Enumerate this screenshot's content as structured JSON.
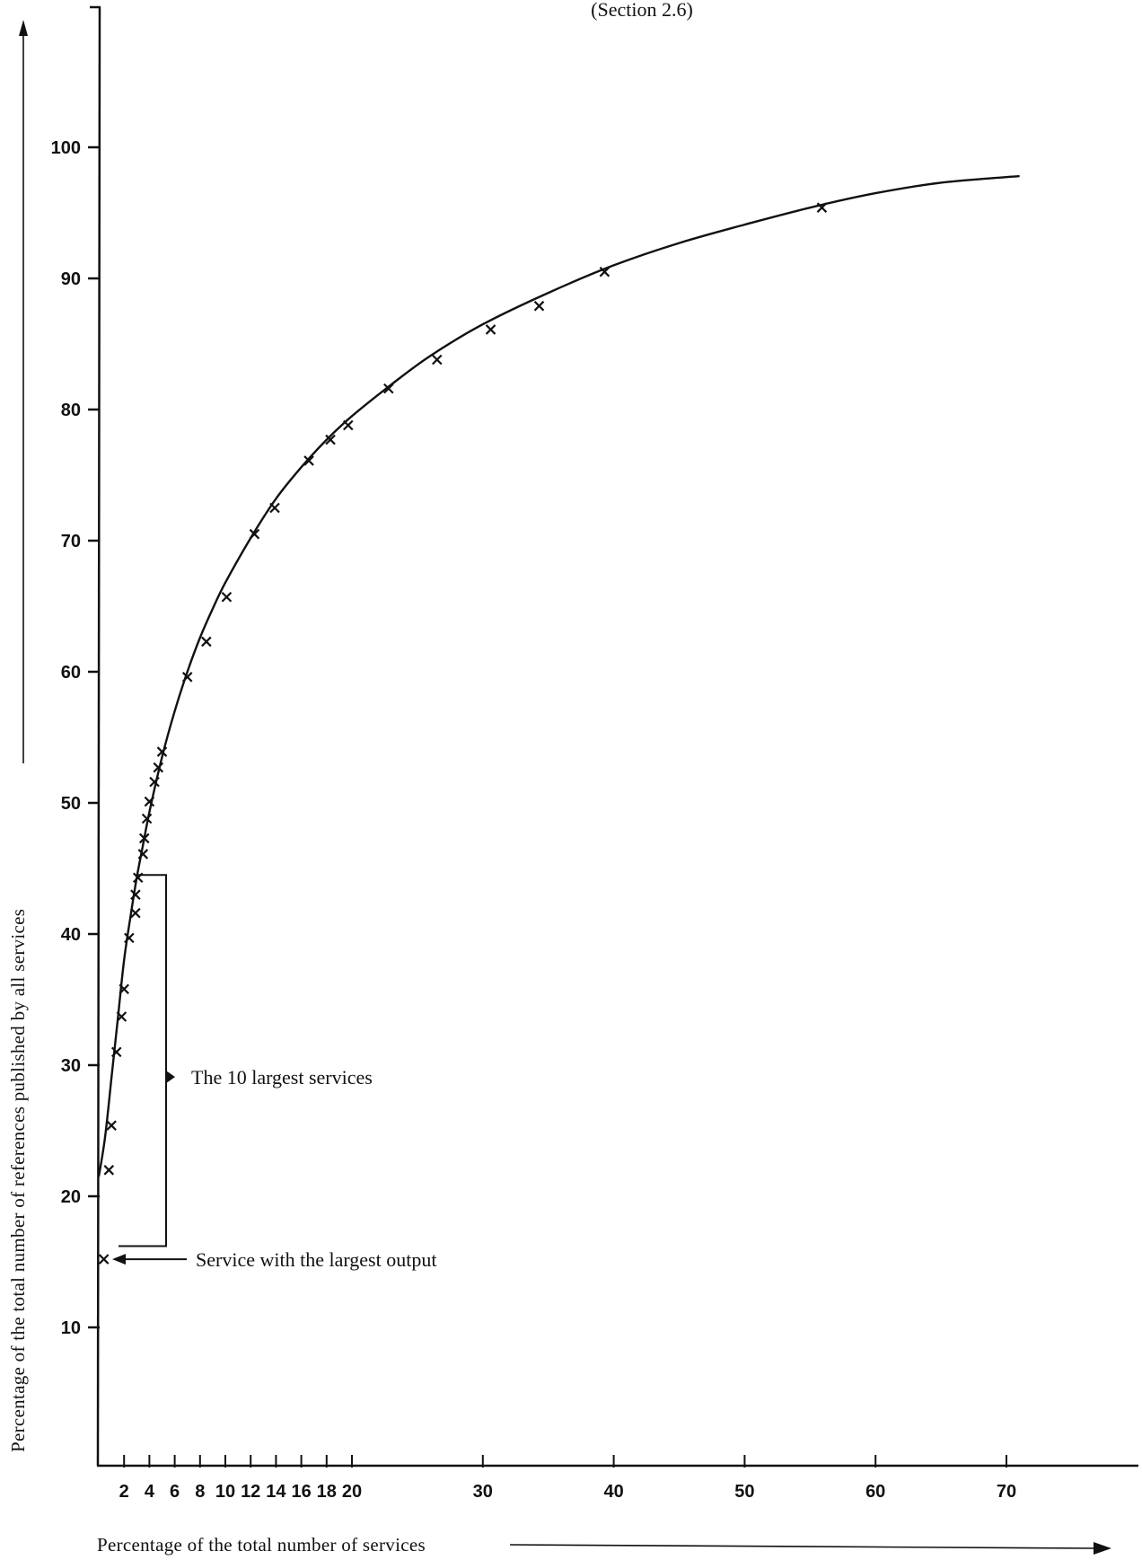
{
  "chart_data": {
    "type": "scatter",
    "subtitle": "(Section 2.6)",
    "xlabel": "Percentage of the total number of services",
    "ylabel": "Percentage of the total number of references published by all services",
    "xlim": [
      0,
      71
    ],
    "ylim": [
      0,
      100
    ],
    "x_ticks": [
      2,
      4,
      6,
      8,
      10,
      12,
      14,
      16,
      18,
      20,
      30,
      40,
      50,
      60,
      70
    ],
    "y_ticks": [
      10,
      20,
      30,
      40,
      50,
      60,
      70,
      80,
      90,
      100
    ],
    "grid": false,
    "legend": "none",
    "series": [
      {
        "marker": "x",
        "points": [
          {
            "x": 0.4,
            "y": 15.2
          },
          {
            "x": 0.8,
            "y": 22.0
          },
          {
            "x": 1.0,
            "y": 25.4
          },
          {
            "x": 1.4,
            "y": 31.0
          },
          {
            "x": 1.8,
            "y": 33.7
          },
          {
            "x": 2.0,
            "y": 35.8
          },
          {
            "x": 2.4,
            "y": 39.7
          },
          {
            "x": 2.9,
            "y": 41.6
          },
          {
            "x": 2.9,
            "y": 43.0
          },
          {
            "x": 3.1,
            "y": 44.3
          },
          {
            "x": 3.5,
            "y": 46.1
          },
          {
            "x": 3.6,
            "y": 47.3
          },
          {
            "x": 3.8,
            "y": 48.8
          },
          {
            "x": 4.0,
            "y": 50.1
          },
          {
            "x": 4.4,
            "y": 51.6
          },
          {
            "x": 4.7,
            "y": 52.7
          },
          {
            "x": 5.0,
            "y": 53.9
          },
          {
            "x": 7.0,
            "y": 59.6
          },
          {
            "x": 8.5,
            "y": 62.3
          },
          {
            "x": 10.1,
            "y": 65.7
          },
          {
            "x": 12.3,
            "y": 70.5
          },
          {
            "x": 13.9,
            "y": 72.5
          },
          {
            "x": 16.6,
            "y": 76.1
          },
          {
            "x": 18.3,
            "y": 77.7
          },
          {
            "x": 19.7,
            "y": 78.8
          },
          {
            "x": 22.8,
            "y": 81.6
          },
          {
            "x": 26.5,
            "y": 83.8
          },
          {
            "x": 30.6,
            "y": 86.1
          },
          {
            "x": 34.3,
            "y": 87.9
          },
          {
            "x": 39.3,
            "y": 90.5
          },
          {
            "x": 55.9,
            "y": 95.4
          }
        ]
      }
    ],
    "fit_curve": [
      {
        "x": 0,
        "y": 21.5
      },
      {
        "x": 0.5,
        "y": 24.5
      },
      {
        "x": 1.0,
        "y": 29.0
      },
      {
        "x": 1.5,
        "y": 33.5
      },
      {
        "x": 2.0,
        "y": 38.0
      },
      {
        "x": 2.5,
        "y": 41.3
      },
      {
        "x": 3.0,
        "y": 44.3
      },
      {
        "x": 3.5,
        "y": 46.8
      },
      {
        "x": 4.0,
        "y": 49.3
      },
      {
        "x": 5.0,
        "y": 53.5
      },
      {
        "x": 6.0,
        "y": 57.0
      },
      {
        "x": 7.0,
        "y": 60.0
      },
      {
        "x": 8.0,
        "y": 62.6
      },
      {
        "x": 9.0,
        "y": 64.8
      },
      {
        "x": 10.0,
        "y": 66.8
      },
      {
        "x": 12.0,
        "y": 70.2
      },
      {
        "x": 14.0,
        "y": 73.2
      },
      {
        "x": 16.0,
        "y": 75.6
      },
      {
        "x": 18.0,
        "y": 77.7
      },
      {
        "x": 20.0,
        "y": 79.5
      },
      {
        "x": 23.0,
        "y": 81.9
      },
      {
        "x": 26.0,
        "y": 84.1
      },
      {
        "x": 30.0,
        "y": 86.5
      },
      {
        "x": 35.0,
        "y": 88.9
      },
      {
        "x": 40.0,
        "y": 91.0
      },
      {
        "x": 45.0,
        "y": 92.7
      },
      {
        "x": 50.0,
        "y": 94.1
      },
      {
        "x": 55.0,
        "y": 95.4
      },
      {
        "x": 60.0,
        "y": 96.5
      },
      {
        "x": 65.0,
        "y": 97.3
      },
      {
        "x": 71.0,
        "y": 97.8
      }
    ],
    "annotations": [
      {
        "id": "bracket",
        "text": "The 10 largest services",
        "y_top": 44.5,
        "y_bottom": 16.2
      },
      {
        "id": "largest",
        "text": "Service with the largest output",
        "y": 15.2
      }
    ]
  }
}
